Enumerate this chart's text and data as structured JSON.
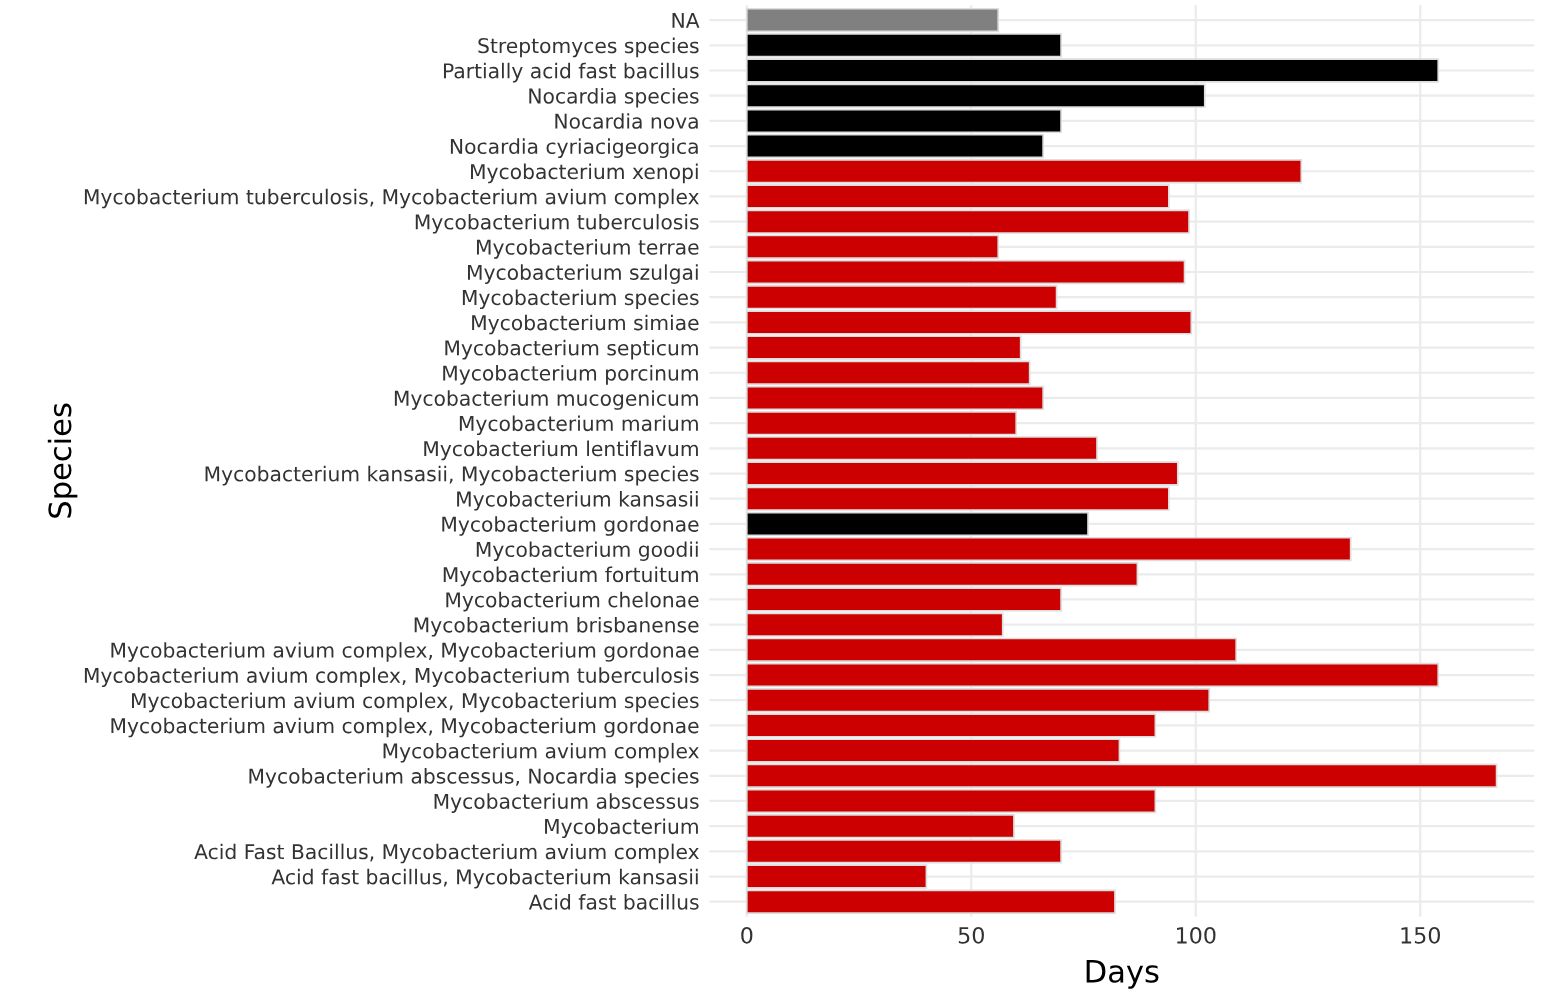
{
  "chart_data": {
    "type": "bar",
    "orientation": "horizontal",
    "xlabel": "Days",
    "ylabel": "Species",
    "categories": [
      "NA",
      "Streptomyces species",
      "Partially acid fast bacillus",
      "Nocardia species",
      "Nocardia nova",
      "Nocardia cyriacigeorgica",
      "Mycobacterium xenopi",
      "Mycobacterium tuberculosis, Mycobacterium avium complex",
      "Mycobacterium tuberculosis",
      "Mycobacterium terrae",
      "Mycobacterium szulgai",
      "Mycobacterium species",
      "Mycobacterium simiae",
      "Mycobacterium septicum",
      "Mycobacterium porcinum",
      "Mycobacterium mucogenicum",
      "Mycobacterium marium",
      "Mycobacterium lentiflavum",
      "Mycobacterium kansasii, Mycobacterium species",
      "Mycobacterium kansasii",
      "Mycobacterium gordonae",
      "Mycobacterium goodii",
      "Mycobacterium fortuitum",
      "Mycobacterium chelonae",
      "Mycobacterium brisbanense",
      "Mycobacterium avium complex, Mycobacterium gordonae",
      "Mycobacterium avium complex, Mycobacterium tuberculosis",
      "Mycobacterium avium complex, Mycobacterium species",
      "Mycobacterium avium complex, Mycobacterium gordonae",
      "Mycobacterium avium complex",
      "Mycobacterium abscessus, Nocardia species",
      "Mycobacterium abscessus",
      "Mycobacterium",
      "Acid Fast Bacillus, Mycobacterium avium complex",
      "Acid fast bacillus, Mycobacterium kansasii",
      "Acid fast bacillus"
    ],
    "values": [
      56,
      70,
      154,
      102,
      70,
      66,
      123.5,
      94,
      98.5,
      56,
      97.5,
      69,
      99,
      61,
      63,
      66,
      60,
      78,
      96,
      94,
      76,
      134.5,
      87,
      70,
      57,
      109,
      154,
      103,
      91,
      83,
      167,
      91,
      59.5,
      70,
      40,
      82
    ],
    "colors": [
      "#808080",
      "#000000",
      "#000000",
      "#000000",
      "#000000",
      "#000000",
      "#cc0000",
      "#cc0000",
      "#cc0000",
      "#cc0000",
      "#cc0000",
      "#cc0000",
      "#cc0000",
      "#cc0000",
      "#cc0000",
      "#cc0000",
      "#cc0000",
      "#cc0000",
      "#cc0000",
      "#cc0000",
      "#000000",
      "#cc0000",
      "#cc0000",
      "#cc0000",
      "#cc0000",
      "#cc0000",
      "#cc0000",
      "#cc0000",
      "#cc0000",
      "#cc0000",
      "#cc0000",
      "#cc0000",
      "#cc0000",
      "#cc0000",
      "#cc0000",
      "#cc0000"
    ],
    "xlim": [
      -8.35,
      175.4
    ],
    "xticks": [
      0,
      50,
      100,
      150
    ],
    "grid": true
  }
}
